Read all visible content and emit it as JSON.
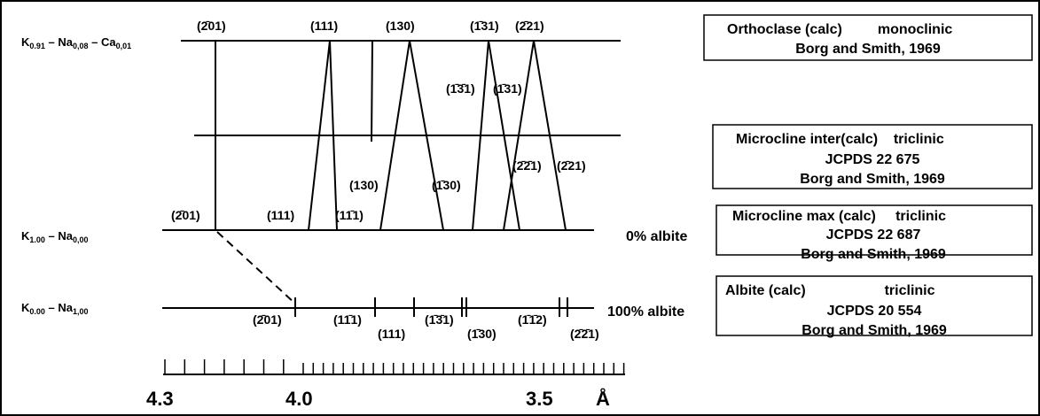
{
  "levels": {
    "top": {
      "composition": [
        "K",
        "0.91",
        " – Na",
        "0,08",
        " – Ca",
        "0,01"
      ]
    },
    "max": {
      "composition": [
        "K",
        "1.00",
        " – Na",
        "0,00"
      ],
      "note": "0% albite"
    },
    "albite": {
      "composition": [
        "K",
        "0.00",
        " – Na",
        "1,00"
      ],
      "note": "100% albite"
    }
  },
  "peaks": {
    "orthoclase": [
      "(2̄01)",
      "(111)",
      "(130)",
      "(1̄31)",
      "(2̄21)"
    ],
    "inter": [
      "(1̄3̄1)",
      "(1̄31)",
      "(130)",
      "(1̄30)",
      "(2̄2̄1)",
      "(2̄21)"
    ],
    "max": [
      "(2̄01)",
      "(111)",
      "(11̄1)"
    ],
    "albite": [
      "(2̄01)",
      "(11̄1)",
      "(111)",
      "(1̄3̄1)",
      "(1̄30)",
      "(1̄1̄2)",
      "(2̄2̄1)"
    ]
  },
  "boxes": [
    {
      "lines": [
        "Orthoclase (calc)         monoclinic",
        "Borg and Smith, 1969"
      ]
    },
    {
      "lines": [
        "Microcline inter(calc)    triclinic",
        "JCPDS 22 675",
        "Borg and Smith, 1969"
      ]
    },
    {
      "lines": [
        "Microcline max (calc)     triclinic",
        "JCPDS 22 687",
        "Borg and Smith, 1969"
      ]
    },
    {
      "lines": [
        "Albite (calc)                    triclinic",
        "JCPDS 20 554",
        "Borg and Smith, 1969"
      ]
    }
  ],
  "axis": {
    "labels": [
      "4.3",
      "4.0",
      "3.5"
    ],
    "unit": "Å"
  }
}
